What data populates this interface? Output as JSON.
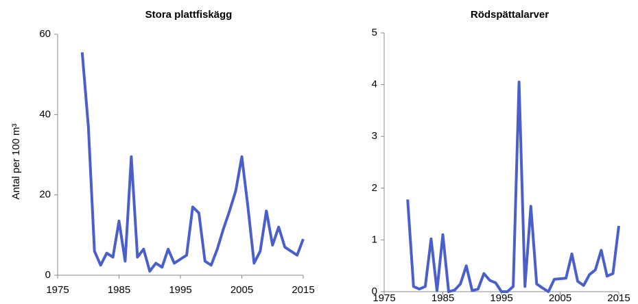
{
  "chart_data": [
    {
      "type": "line",
      "title": "Stora plattfiskägg",
      "y_label": "Antal per 100 m³",
      "color": "#4a5fc9",
      "x": [
        1979,
        1980,
        1981,
        1982,
        1983,
        1984,
        1985,
        1986,
        1987,
        1988,
        1989,
        1990,
        1991,
        1992,
        1993,
        1994,
        1995,
        1996,
        1997,
        1998,
        1999,
        2000,
        2001,
        2002,
        2003,
        2004,
        2005,
        2006,
        2007,
        2008,
        2009,
        2010,
        2011,
        2012,
        2013,
        2014,
        2015
      ],
      "values": [
        55.5,
        37,
        6,
        2.5,
        5.5,
        4.5,
        13.5,
        3.5,
        29.5,
        4.5,
        6.5,
        1,
        3,
        2,
        6.5,
        3,
        4,
        5,
        17,
        15.5,
        3.5,
        2.5,
        6.5,
        11.5,
        16,
        21,
        29.5,
        17,
        3,
        6,
        16,
        7.5,
        12,
        7,
        6,
        5,
        9
      ],
      "xlim": [
        1975,
        2015
      ],
      "xticks": [
        1975,
        1985,
        1995,
        2005,
        2015
      ],
      "ylim": [
        0,
        60
      ],
      "yticks": [
        0,
        20,
        40,
        60
      ]
    },
    {
      "type": "line",
      "title": "Rödspättalarver",
      "color": "#4a5fc9",
      "x": [
        1979,
        1980,
        1981,
        1982,
        1983,
        1984,
        1985,
        1986,
        1987,
        1988,
        1989,
        1990,
        1991,
        1992,
        1993,
        1994,
        1995,
        1996,
        1997,
        1998,
        1999,
        2000,
        2001,
        2002,
        2003,
        2004,
        2005,
        2006,
        2007,
        2008,
        2009,
        2010,
        2011,
        2012,
        2013,
        2014,
        2015
      ],
      "values": [
        1.78,
        0.1,
        0.05,
        0.1,
        1.02,
        0.02,
        1.1,
        0,
        0.03,
        0.15,
        0.5,
        0.02,
        0.05,
        0.35,
        0.22,
        0.17,
        0,
        0,
        0.1,
        4.05,
        0.1,
        1.65,
        0.15,
        0.07,
        0,
        0.24,
        0.25,
        0.26,
        0.73,
        0.2,
        0.12,
        0.33,
        0.42,
        0.8,
        0.3,
        0.35,
        1.27
      ],
      "xlim": [
        1975,
        2015
      ],
      "xticks": [
        1975,
        1985,
        1995,
        2005,
        2015
      ],
      "ylim": [
        0,
        5
      ],
      "yticks": [
        0,
        1,
        2,
        3,
        4,
        5
      ]
    }
  ]
}
